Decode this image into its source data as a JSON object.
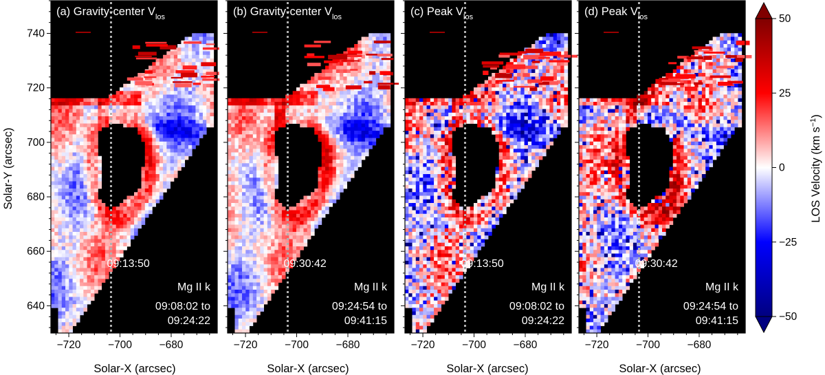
{
  "chart_data": {
    "type": "heatmap",
    "shared": {
      "xlabel": "Solar-X (arcsec)",
      "ylabel": "Solar-Y (arcsec)",
      "xlim": [
        -727,
        -662
      ],
      "ylim": [
        630,
        752
      ],
      "x_ticks": [
        -720,
        -700,
        -680
      ],
      "x_tick_labels": [
        "−720",
        "−700",
        "−680"
      ],
      "y_ticks": [
        640,
        660,
        680,
        700,
        720,
        740
      ],
      "y_tick_labels": [
        "640",
        "660",
        "680",
        "700",
        "720",
        "740"
      ],
      "vertical_line_x": -703.5
    },
    "panels": [
      {
        "id": "a",
        "title_main": "(a) Gravity-center V",
        "title_sub": "los",
        "line_time": "09:13:50",
        "line": "Mg II k",
        "time_start": "09:08:02 to",
        "time_end": "09:24:22",
        "kind": "gravity",
        "seed": 11
      },
      {
        "id": "b",
        "title_main": "(b) Gravity-center V",
        "title_sub": "los",
        "line_time": "09:30:42",
        "line": "Mg II k",
        "time_start": "09:24:54 to",
        "time_end": "09:41:15",
        "kind": "gravity",
        "seed": 23
      },
      {
        "id": "c",
        "title_main": "(c) Peak V",
        "title_sub": "los",
        "line_time": "09:13:50",
        "line": "Mg II k",
        "time_start": "09:08:02 to",
        "time_end": "09:24:22",
        "kind": "peak",
        "seed": 37
      },
      {
        "id": "d",
        "title_main": "(d) Peak V",
        "title_sub": "los",
        "line_time": "09:30:42",
        "line": "Mg II k",
        "time_start": "09:24:54 to",
        "time_end": "09:41:15",
        "kind": "peak",
        "seed": 53
      }
    ],
    "colorbar": {
      "label_main": "LOS Velocity (km s",
      "label_exp": "−1",
      "label_close": ")",
      "range": [
        -50,
        50
      ],
      "ticks": [
        50,
        25,
        0,
        -25,
        -50
      ],
      "tick_labels": [
        "50",
        "25",
        "0",
        "−25",
        "−50"
      ],
      "colormap": "seismic_r",
      "extend": "both"
    },
    "colors": {
      "positive": "#b40000",
      "negative": "#00008c",
      "zero": "#ffffff",
      "masked": "#000000"
    }
  }
}
